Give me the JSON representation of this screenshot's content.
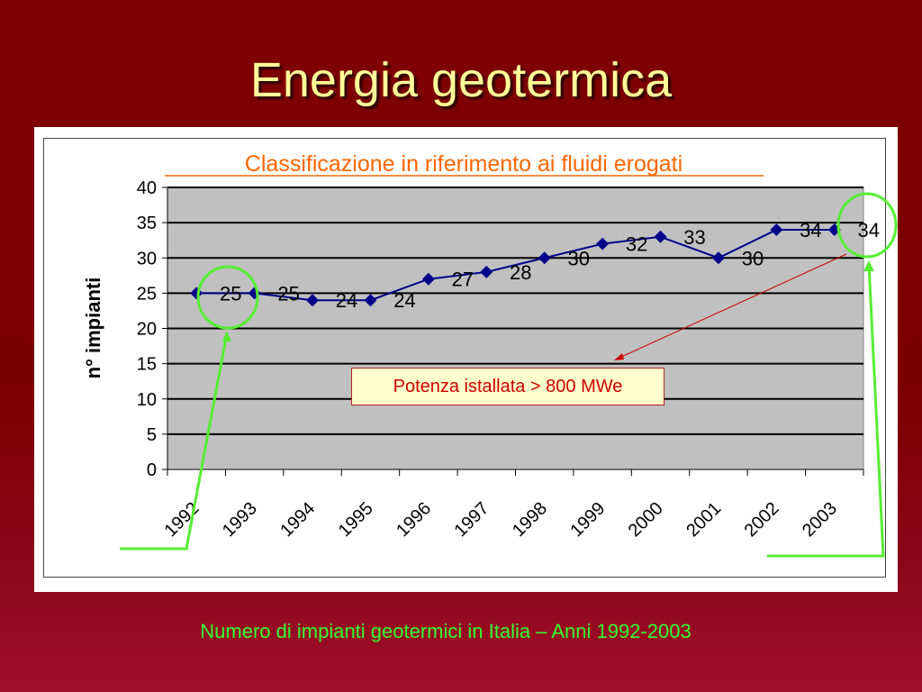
{
  "slide": {
    "title": "Energia geotermica",
    "caption": "Numero di impianti geotermici in Italia – Anni 1992-2003"
  },
  "chart_data": {
    "type": "line",
    "title": "Classificazione in riferimento ai fluidi erogati",
    "xlabel": "",
    "ylabel": "n° impianti",
    "ylim": [
      0,
      40
    ],
    "yticks": [
      "0",
      "5",
      "10",
      "15",
      "20",
      "25",
      "30",
      "35",
      "40"
    ],
    "x_tick_labels": [
      "1992",
      "1993",
      "1994",
      "1995",
      "1996",
      "1997",
      "1998",
      "1999",
      "2000",
      "2001",
      "2002",
      "2003"
    ],
    "grid": true,
    "series": [
      {
        "values": [
          25,
          25,
          24,
          24,
          27,
          28,
          30,
          32,
          33,
          30,
          34,
          34
        ],
        "color": "#00008b"
      }
    ],
    "data_labels": [
      "25",
      "25",
      "24",
      "24",
      "27",
      "28",
      "30",
      "32",
      "33",
      "30",
      "34",
      "34"
    ],
    "annotation": "Potenza istallata > 800 MWe",
    "plot_background": "#c0c0c0",
    "title_color": "#ff6600"
  }
}
